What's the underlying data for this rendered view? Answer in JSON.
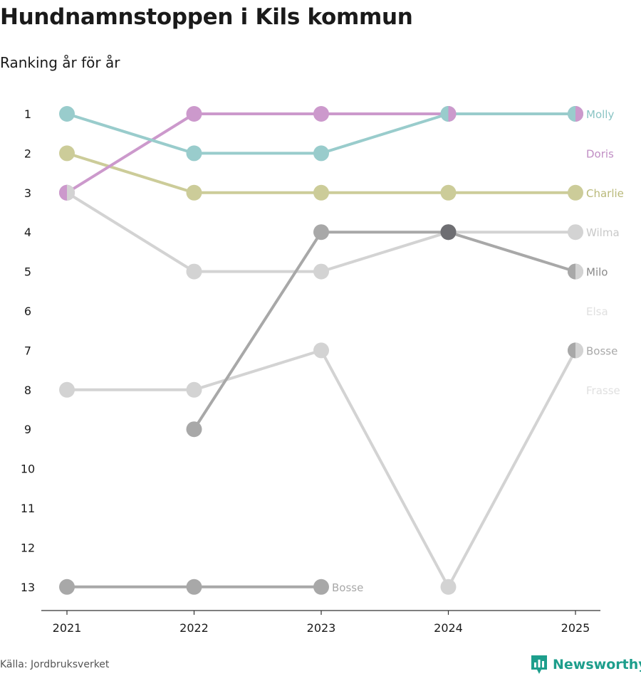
{
  "title": "Hundnamnstoppen i Kils kommun",
  "subtitle": "Ranking år för år",
  "source": "Källa: Jordbruksverket",
  "brand": {
    "name": "Newsworthy",
    "icon": "newsworthy-logo-icon",
    "color": "#1d9e8c"
  },
  "chart_data": {
    "type": "line",
    "title": "Hundnamnstoppen i Kils kommun",
    "subtitle": "Ranking år för år",
    "x": [
      "2021",
      "2022",
      "2023",
      "2024",
      "2025"
    ],
    "y_ticks": [
      "1",
      "2",
      "3",
      "4",
      "5",
      "6",
      "7",
      "8",
      "9",
      "10",
      "11",
      "12",
      "13"
    ],
    "ylim": [
      1,
      13
    ],
    "y_inverted": true,
    "grid": false,
    "series": [
      {
        "name": "Elsa",
        "color": "#ececec",
        "label_color": "#e0e0e0",
        "values": [
          null,
          null,
          null,
          null,
          6
        ],
        "show_label": true
      },
      {
        "name": "Frasse",
        "color": "#ececec",
        "label_color": "#e0e0e0",
        "values": [
          null,
          null,
          null,
          null,
          8
        ],
        "show_label": true
      },
      {
        "name": "Wilma",
        "color": "#d3d3d3",
        "label_color": "#c8c8c8",
        "values": [
          3,
          5,
          5,
          4,
          4
        ],
        "show_label": true
      },
      {
        "name": "Bosse",
        "color": "#d3d3d3",
        "label_color": "#a8a8a8",
        "values": [
          8,
          8,
          7,
          13,
          7
        ],
        "show_label": true
      },
      {
        "name": "Bosse",
        "color": "#a8a8a8",
        "label_color": "#a8a8a8",
        "values": [
          13,
          13,
          13,
          null,
          null
        ],
        "show_label": false,
        "end_label": "Bosse"
      },
      {
        "name": "Milo",
        "color": "#a8a8a8",
        "label_color": "#8a8a8a",
        "values": [
          null,
          9,
          4,
          4,
          5
        ],
        "show_label": true
      },
      {
        "name": "Charlie",
        "color": "#cccc99",
        "label_color": "#b9b97a",
        "values": [
          2,
          3,
          3,
          3,
          3
        ],
        "show_label": true
      },
      {
        "name": "Doris",
        "color": "#cc99cc",
        "label_color": "#c08ec4",
        "values": [
          3,
          1,
          1,
          1,
          1
        ],
        "show_label": true,
        "label_rank": 2
      },
      {
        "name": "Molly",
        "color": "#99cccc",
        "label_color": "#8ac4c4",
        "values": [
          1,
          2,
          2,
          1,
          1
        ],
        "show_label": true
      }
    ],
    "overlaps": [
      {
        "x": "2021",
        "rank": 3,
        "left": "#cc99cc",
        "right": "#d3d3d3"
      },
      {
        "x": "2024",
        "rank": 1,
        "left": "#99cccc",
        "right": "#cc99cc"
      },
      {
        "x": "2024",
        "rank": 4,
        "left": "#6e6e72",
        "right": "#6e6e72"
      },
      {
        "x": "2025",
        "rank": 1,
        "left": "#99cccc",
        "right": "#cc99cc"
      },
      {
        "x": "2025",
        "rank": 5,
        "left": "#a8a8a8",
        "right": "#d3d3d3"
      },
      {
        "x": "2025",
        "rank": 7,
        "left": "#a8a8a8",
        "right": "#d3d3d3"
      }
    ]
  }
}
